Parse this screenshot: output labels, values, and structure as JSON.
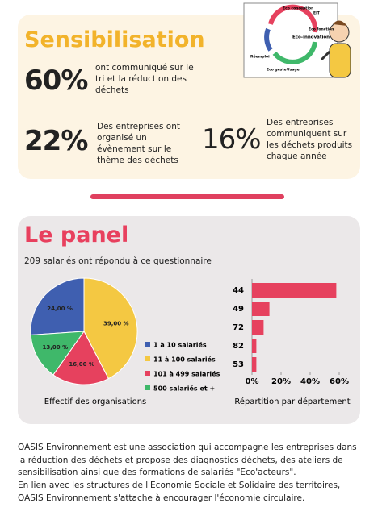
{
  "sensibilisation": {
    "title": "Sensibilisation",
    "stats": [
      {
        "value": "60%",
        "text": "ont communiqué sur le tri et la réduction des déchets"
      },
      {
        "value": "22%",
        "text": "Des entreprises ont organisé un évènement sur le thème des déchets"
      },
      {
        "value": "16%",
        "text": "Des entreprises communiquent sur les déchets produits chaque année"
      }
    ],
    "illustration": [
      "Eco conception",
      "EIT",
      "Eco fonction",
      "Eco-innovation",
      "Réemploi",
      "Eco geste",
      "Usage"
    ]
  },
  "panel": {
    "title": "Le panel",
    "subtitle": "209 salariés ont répondu à ce questionnaire",
    "pie": {
      "type": "pie",
      "caption": "Effectif des organisations",
      "categories": [
        "1 à 10 salariés",
        "11 à 100 salariés",
        "101 à 499 salariés",
        "500 salariés et +"
      ],
      "values": [
        24,
        39,
        16,
        13
      ],
      "value_labels": [
        "24,00 %",
        "39,00 %",
        "16,00 %",
        "13,00 %"
      ],
      "colors": [
        "#3f5fb0",
        "#f4c842",
        "#e6415e",
        "#3fb86a"
      ]
    },
    "bars": {
      "type": "bar",
      "orientation": "horizontal",
      "caption": "Répartition par département",
      "categories": [
        "44",
        "49",
        "72",
        "82",
        "53"
      ],
      "values": [
        58,
        12,
        8,
        3,
        3
      ],
      "color": "#e6415e",
      "xlim": [
        0,
        60
      ],
      "xticks": [
        {
          "value": 0,
          "label": "0%"
        },
        {
          "value": 20,
          "label": "20%"
        },
        {
          "value": 40,
          "label": "40%"
        },
        {
          "value": 60,
          "label": "60%"
        }
      ]
    }
  },
  "footer": [
    "OASIS Environnement est une association qui accompagne les entreprises dans la réduction des déchets et propose des diagnostics déchets, des ateliers de sensibilisation ainsi que des formations de salariés \"Eco'acteurs\".",
    "En lien avec les  structures de l'Economie Sociale et Solidaire des territoires, OASIS Environnement s'attache à encourager l'économie circulaire."
  ]
}
